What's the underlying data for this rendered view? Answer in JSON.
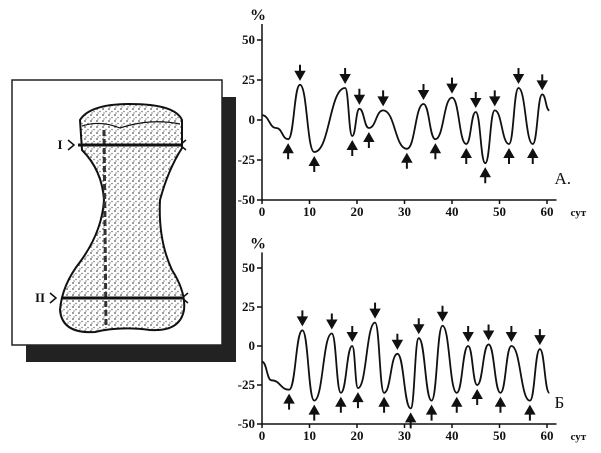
{
  "illustration": {
    "labels": [
      "I",
      "II"
    ]
  },
  "chart_data": [
    {
      "type": "line",
      "panel_label": "А.",
      "y_label": "%",
      "x_label": "сут",
      "color": "#111111",
      "x": [
        0,
        3,
        5.5,
        8,
        11,
        17.5,
        19,
        20.5,
        22.5,
        25.5,
        30.5,
        34,
        36.5,
        40,
        43,
        45,
        47,
        49,
        52,
        54,
        57,
        59,
        60.5
      ],
      "values": [
        3,
        -5,
        -12,
        22,
        -20,
        20,
        -10,
        7,
        -5,
        6,
        -18,
        10,
        -12,
        14,
        -15,
        5,
        -27,
        6,
        -15,
        20,
        -15,
        16,
        6
      ],
      "xlim": [
        0,
        62
      ],
      "xticks": [
        0,
        10,
        20,
        30,
        40,
        50,
        60
      ],
      "ylim": [
        -50,
        60
      ],
      "yticks": [
        -50,
        -25,
        0,
        25,
        50
      ]
    },
    {
      "type": "line",
      "panel_label": "Б",
      "y_label": "%",
      "x_label": "сут",
      "color": "#111111",
      "x": [
        0,
        2,
        5.7,
        8.5,
        11,
        14.7,
        16.6,
        19,
        20.2,
        23.8,
        25.7,
        28.5,
        31.3,
        33,
        35.7,
        38,
        41,
        43.4,
        45.3,
        47.7,
        50.2,
        52.5,
        56.4,
        58.5,
        60.5
      ],
      "values": [
        -10,
        -22,
        -28,
        10,
        -35,
        8,
        -30,
        0,
        -27,
        15,
        -30,
        -5,
        -40,
        5,
        -35,
        13,
        -30,
        0,
        -25,
        1,
        -30,
        0,
        -35,
        -2,
        -30
      ],
      "xlim": [
        0,
        62
      ],
      "xticks": [
        0,
        10,
        20,
        30,
        40,
        50,
        60
      ],
      "ylim": [
        -50,
        60
      ],
      "yticks": [
        -50,
        -25,
        0,
        25,
        50
      ]
    }
  ]
}
